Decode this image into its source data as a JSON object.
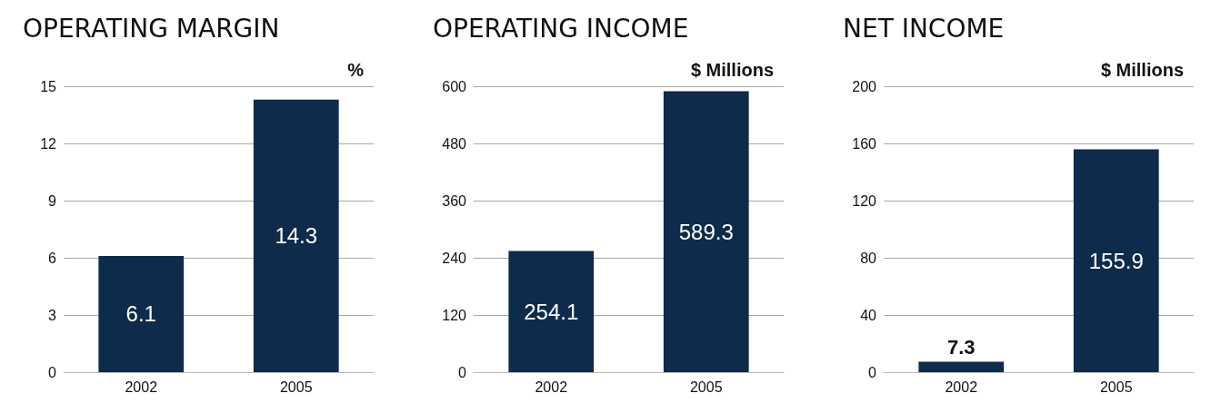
{
  "chart_data": [
    {
      "type": "bar",
      "title": "OPERATING MARGIN",
      "ylabel": "%",
      "categories": [
        "2002",
        "2005"
      ],
      "values": [
        6.1,
        14.3
      ],
      "color": "#0f2b4c",
      "ylim": [
        0,
        15
      ],
      "yticks": [
        0,
        3,
        6,
        9,
        12,
        15
      ],
      "grid": "y",
      "data_labels": true
    },
    {
      "type": "bar",
      "title": "OPERATING INCOME",
      "ylabel": "$ Millions",
      "categories": [
        "2002",
        "2005"
      ],
      "values": [
        254.1,
        589.3
      ],
      "color": "#0f2b4c",
      "ylim": [
        0,
        600
      ],
      "yticks": [
        0,
        120,
        240,
        360,
        480,
        600
      ],
      "grid": "y",
      "data_labels": true
    },
    {
      "type": "bar",
      "title": "NET INCOME",
      "ylabel": "$ Millions",
      "categories": [
        "2002",
        "2005"
      ],
      "values": [
        7.3,
        155.9
      ],
      "color": "#0f2b4c",
      "ylim": [
        0,
        200
      ],
      "yticks": [
        0,
        40,
        80,
        120,
        160,
        200
      ],
      "grid": "y",
      "data_labels": true
    }
  ]
}
